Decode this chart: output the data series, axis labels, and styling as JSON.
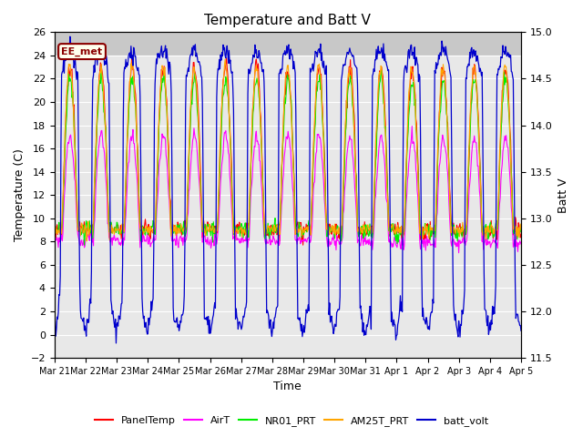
{
  "title": "Temperature and Batt V",
  "xlabel": "Time",
  "ylabel_left": "Temperature (C)",
  "ylabel_right": "Batt V",
  "ylim_left": [
    -2,
    26
  ],
  "ylim_right": [
    11.5,
    15.0
  ],
  "annotation_text": "EE_met",
  "annotation_fg": "#8B0000",
  "annotation_bg": "#FFFFEE",
  "bg_color": "#E8E8E8",
  "band_color": "#D0D0D0",
  "line_colors": {
    "PanelTemp": "#FF0000",
    "AirT": "#FF00FF",
    "NR01_PRT": "#00EE00",
    "AM25T_PRT": "#FFA500",
    "batt_volt": "#0000CC"
  },
  "legend_labels": [
    "PanelTemp",
    "AirT",
    "NR01_PRT",
    "AM25T_PRT",
    "batt_volt"
  ],
  "xtick_labels": [
    "Mar 21",
    "Mar 22",
    "Mar 23",
    "Mar 24",
    "Mar 25",
    "Mar 26",
    "Mar 27",
    "Mar 28",
    "Mar 29",
    "Mar 30",
    "Mar 31",
    "Apr 1",
    "Apr 2",
    "Apr 3",
    "Apr 4",
    "Apr 5"
  ],
  "yticks_left": [
    -2,
    0,
    2,
    4,
    6,
    8,
    10,
    12,
    14,
    16,
    18,
    20,
    22,
    24,
    26
  ],
  "yticks_right": [
    11.5,
    12.0,
    12.5,
    13.0,
    13.5,
    14.0,
    14.5,
    15.0
  ],
  "num_days": 15
}
